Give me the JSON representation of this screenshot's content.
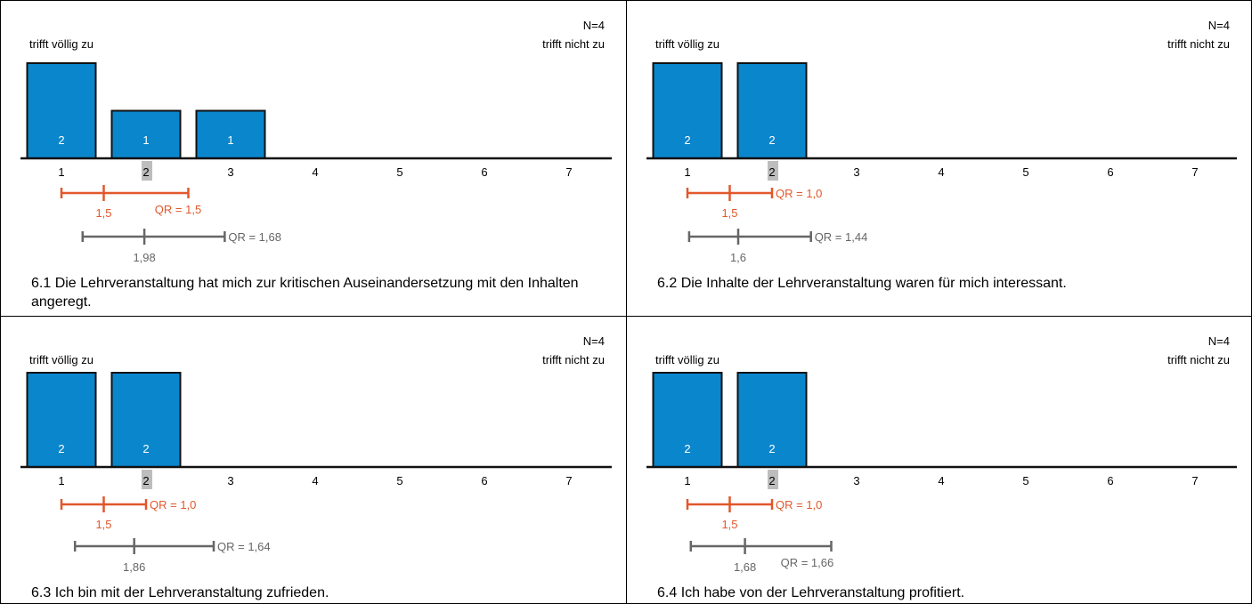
{
  "chart_data": [
    {
      "type": "bar",
      "n_label": "N=4",
      "left_label": "trifft völlig zu",
      "right_label": "trifft nicht zu",
      "categories": [
        "1",
        "2",
        "3",
        "4",
        "5",
        "6",
        "7"
      ],
      "values": [
        2,
        1,
        1,
        0,
        0,
        0,
        0
      ],
      "highlight_category": "2",
      "qr_own": {
        "start": 1,
        "median": 1.5,
        "end": 2.5,
        "median_label": "1,5",
        "qr_label": "QR = 1,5"
      },
      "qr_compare": {
        "start": 1.25,
        "median": 1.98,
        "end": 2.93,
        "median_label": "1,98",
        "qr_label": "QR = 1,68"
      },
      "caption": "6.1 Die Lehrveranstaltung hat mich zur kritischen Auseinandersetzung mit den Inhalten angeregt."
    },
    {
      "type": "bar",
      "n_label": "N=4",
      "left_label": "trifft völlig zu",
      "right_label": "trifft nicht zu",
      "categories": [
        "1",
        "2",
        "3",
        "4",
        "5",
        "6",
        "7"
      ],
      "values": [
        2,
        2,
        0,
        0,
        0,
        0,
        0
      ],
      "highlight_category": "2",
      "qr_own": {
        "start": 1,
        "median": 1.5,
        "end": 2,
        "median_label": "1,5",
        "qr_label": "QR = 1,0"
      },
      "qr_compare": {
        "start": 1.02,
        "median": 1.6,
        "end": 2.46,
        "median_label": "1,6",
        "qr_label": "QR = 1,44"
      },
      "caption": "6.2 Die Inhalte der Lehrveranstaltung waren für mich interessant."
    },
    {
      "type": "bar",
      "n_label": "N=4",
      "left_label": "trifft völlig zu",
      "right_label": "trifft nicht zu",
      "categories": [
        "1",
        "2",
        "3",
        "4",
        "5",
        "6",
        "7"
      ],
      "values": [
        2,
        2,
        0,
        0,
        0,
        0,
        0
      ],
      "highlight_category": "2",
      "qr_own": {
        "start": 1,
        "median": 1.5,
        "end": 2,
        "median_label": "1,5",
        "qr_label": "QR = 1,0"
      },
      "qr_compare": {
        "start": 1.16,
        "median": 1.86,
        "end": 2.8,
        "median_label": "1,86",
        "qr_label": "QR = 1,64"
      },
      "caption": "6.3 Ich bin mit der Lehrveranstaltung zufrieden."
    },
    {
      "type": "bar",
      "n_label": "N=4",
      "left_label": "trifft völlig zu",
      "right_label": "trifft nicht zu",
      "categories": [
        "1",
        "2",
        "3",
        "4",
        "5",
        "6",
        "7"
      ],
      "values": [
        2,
        2,
        0,
        0,
        0,
        0,
        0
      ],
      "highlight_category": "2",
      "qr_own": {
        "start": 1,
        "median": 1.5,
        "end": 2,
        "median_label": "1,5",
        "qr_label": "QR = 1,0"
      },
      "qr_compare": {
        "start": 1.04,
        "median": 1.68,
        "end": 2.7,
        "median_label": "1,68",
        "qr_label": "QR = 1,66"
      },
      "caption": "6.4 Ich habe von der Lehrveranstaltung profitiert."
    }
  ],
  "colors": {
    "bar_fill": "#0a86cc",
    "bar_stroke": "#111111",
    "qr_own": "#e2572b",
    "qr_compare": "#666666",
    "highlight": "#bdbdbd"
  }
}
